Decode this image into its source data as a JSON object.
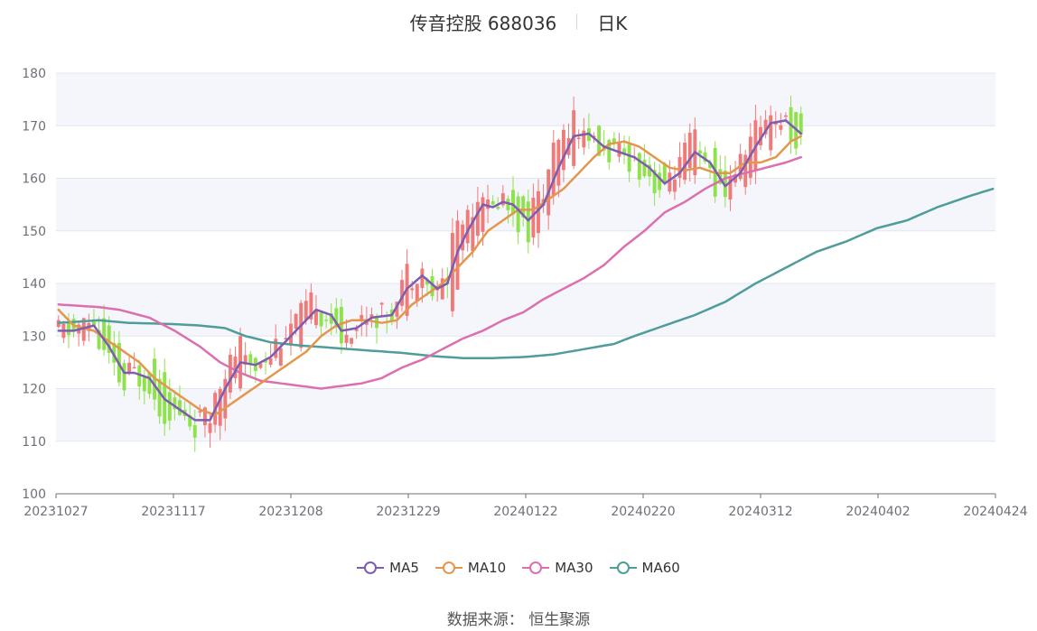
{
  "header": {
    "title": "传音控股 688036",
    "period": "日K"
  },
  "source": "数据来源： 恒生聚源",
  "colors": {
    "up": "#f07a7a",
    "down": "#8ee24b",
    "ma5": "#7e5cb0",
    "ma10": "#e4974c",
    "ma30": "#db6fb0",
    "ma60": "#4f9d9a",
    "band": "#f4f6fb",
    "grid": "#e0e6f1",
    "axis": "#6e7079"
  },
  "chart_data": {
    "type": "candlestick",
    "title": "传音控股 688036",
    "ylim": [
      100,
      180
    ],
    "y_ticks": [
      100,
      110,
      120,
      130,
      140,
      150,
      160,
      170,
      180
    ],
    "x_ticks": [
      "20231027",
      "20231117",
      "20231208",
      "20231229",
      "20240122",
      "20240220",
      "20240312",
      "20240402",
      "20240424"
    ],
    "legend": [
      {
        "key": "ma5",
        "label": "MA5"
      },
      {
        "key": "ma10",
        "label": "MA10"
      },
      {
        "key": "ma30",
        "label": "MA30"
      },
      {
        "key": "ma60",
        "label": "MA60"
      }
    ],
    "ma_anchors": {
      "ma5": [
        [
          0,
          131
        ],
        [
          3,
          131
        ],
        [
          7,
          132
        ],
        [
          10,
          128
        ],
        [
          13,
          123
        ],
        [
          15,
          123
        ],
        [
          18,
          122
        ],
        [
          21,
          118
        ],
        [
          24,
          116
        ],
        [
          27,
          114
        ],
        [
          30,
          114
        ],
        [
          33,
          120
        ],
        [
          36,
          125
        ],
        [
          39,
          124.5
        ],
        [
          42,
          126
        ],
        [
          45,
          129
        ],
        [
          48,
          132
        ],
        [
          51,
          135
        ],
        [
          54,
          134
        ],
        [
          56,
          131
        ],
        [
          59,
          131.5
        ],
        [
          62,
          133.5
        ],
        [
          66,
          134
        ],
        [
          69,
          139
        ],
        [
          72,
          141.5
        ],
        [
          75,
          139
        ],
        [
          77,
          140
        ],
        [
          79,
          146
        ],
        [
          81,
          150
        ],
        [
          84,
          155
        ],
        [
          86,
          154.5
        ],
        [
          88,
          155.5
        ],
        [
          90,
          155
        ],
        [
          93,
          152
        ],
        [
          96,
          155
        ],
        [
          99,
          162
        ],
        [
          102,
          168
        ],
        [
          105,
          168.5
        ],
        [
          108,
          166
        ],
        [
          111,
          165
        ],
        [
          114,
          164
        ],
        [
          117,
          162
        ],
        [
          120,
          159
        ],
        [
          123,
          161
        ],
        [
          126,
          165
        ],
        [
          129,
          163
        ],
        [
          132,
          158.5
        ],
        [
          135,
          161
        ],
        [
          138,
          166
        ],
        [
          141,
          170.5
        ],
        [
          144,
          171
        ],
        [
          147,
          168.5
        ]
      ],
      "ma10": [
        [
          0,
          135
        ],
        [
          3,
          132
        ],
        [
          7,
          131
        ],
        [
          10,
          129
        ],
        [
          13,
          127
        ],
        [
          16,
          125
        ],
        [
          19,
          122
        ],
        [
          22,
          120
        ],
        [
          25,
          118
        ],
        [
          28,
          116
        ],
        [
          31,
          115
        ],
        [
          34,
          117
        ],
        [
          37,
          119
        ],
        [
          40,
          121
        ],
        [
          43,
          123
        ],
        [
          46,
          125
        ],
        [
          49,
          127
        ],
        [
          52,
          130
        ],
        [
          55,
          132
        ],
        [
          58,
          133
        ],
        [
          61,
          133
        ],
        [
          64,
          132.5
        ],
        [
          67,
          133
        ],
        [
          70,
          136
        ],
        [
          73,
          138
        ],
        [
          76,
          140
        ],
        [
          79,
          143
        ],
        [
          82,
          146
        ],
        [
          85,
          150
        ],
        [
          88,
          152
        ],
        [
          91,
          154
        ],
        [
          94,
          154
        ],
        [
          97,
          156
        ],
        [
          100,
          158
        ],
        [
          103,
          161
        ],
        [
          106,
          164
        ],
        [
          109,
          166.5
        ],
        [
          112,
          167
        ],
        [
          115,
          166
        ],
        [
          118,
          164
        ],
        [
          121,
          162
        ],
        [
          124,
          161.5
        ],
        [
          127,
          162
        ],
        [
          130,
          161
        ],
        [
          133,
          161
        ],
        [
          136,
          163
        ],
        [
          139,
          163
        ],
        [
          142,
          164
        ],
        [
          145,
          167
        ],
        [
          147,
          168
        ]
      ],
      "ma30": [
        [
          0,
          136
        ],
        [
          8,
          135.5
        ],
        [
          12,
          135
        ],
        [
          18,
          133.5
        ],
        [
          23,
          131
        ],
        [
          28,
          128
        ],
        [
          32,
          125
        ],
        [
          36,
          123
        ],
        [
          40,
          121.5
        ],
        [
          44,
          121
        ],
        [
          48,
          120.5
        ],
        [
          52,
          120
        ],
        [
          56,
          120.5
        ],
        [
          60,
          121
        ],
        [
          64,
          122
        ],
        [
          68,
          124
        ],
        [
          72,
          125.5
        ],
        [
          76,
          127.5
        ],
        [
          80,
          129.5
        ],
        [
          84,
          131
        ],
        [
          88,
          133
        ],
        [
          92,
          134.5
        ],
        [
          96,
          137
        ],
        [
          100,
          139
        ],
        [
          104,
          141
        ],
        [
          108,
          143.5
        ],
        [
          112,
          147
        ],
        [
          116,
          150
        ],
        [
          120,
          153.5
        ],
        [
          124,
          155.5
        ],
        [
          128,
          158
        ],
        [
          132,
          160
        ],
        [
          136,
          161
        ],
        [
          140,
          162
        ],
        [
          144,
          163
        ],
        [
          147,
          164
        ]
      ],
      "ma60": [
        [
          0,
          132.5
        ],
        [
          8,
          133
        ],
        [
          14,
          132.5
        ],
        [
          22,
          132.3
        ],
        [
          28,
          132
        ],
        [
          33,
          131.5
        ],
        [
          37,
          130
        ],
        [
          42,
          128.8
        ],
        [
          48,
          128.2
        ],
        [
          55,
          127.7
        ],
        [
          62,
          127.2
        ],
        [
          68,
          126.8
        ],
        [
          74,
          126.2
        ],
        [
          80,
          125.8
        ],
        [
          86,
          125.8
        ],
        [
          92,
          126
        ],
        [
          98,
          126.5
        ],
        [
          104,
          127.5
        ],
        [
          110,
          128.5
        ],
        [
          114,
          130
        ],
        [
          120,
          132
        ],
        [
          126,
          134
        ],
        [
          132,
          136.5
        ],
        [
          138,
          140
        ],
        [
          144,
          143
        ],
        [
          150,
          146
        ],
        [
          156,
          148
        ],
        [
          162,
          150.5
        ],
        [
          168,
          152
        ],
        [
          174,
          154.5
        ],
        [
          180,
          156.5
        ],
        [
          185,
          158
        ]
      ]
    }
  }
}
